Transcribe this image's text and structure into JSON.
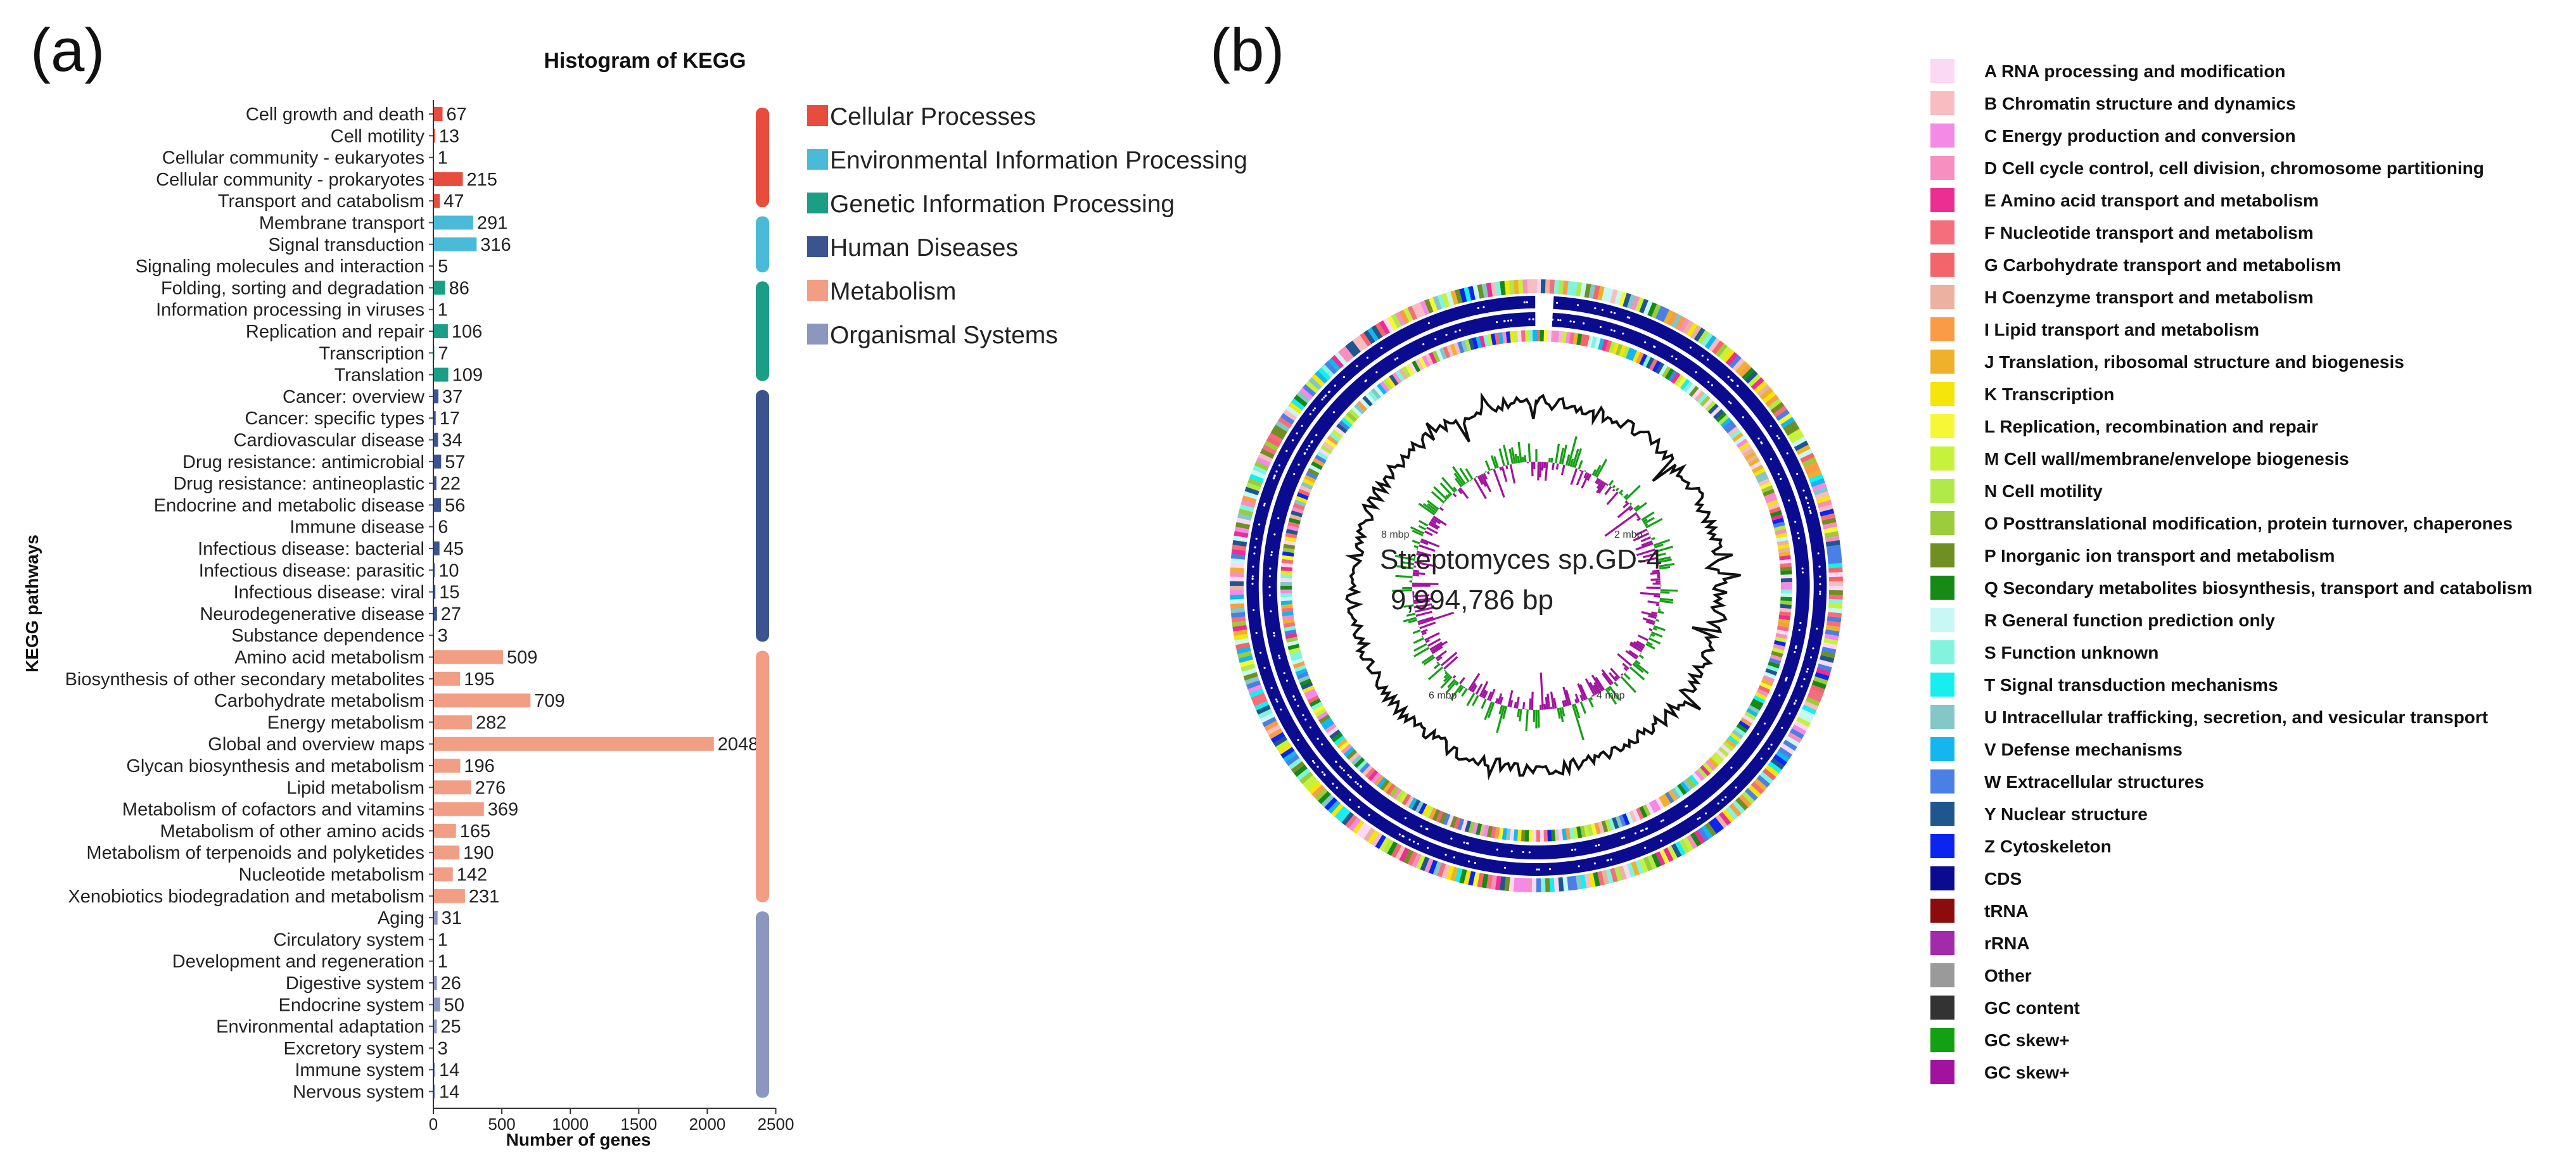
{
  "panels": {
    "a": "(a)",
    "b": "(b)"
  },
  "chart_data": [
    {
      "type": "bar",
      "orientation": "horizontal",
      "title": "Histogram of KEGG",
      "xlabel": "Number of genes",
      "ylabel": "KEGG pathways",
      "xlim": [
        0,
        2500
      ],
      "xticks": [
        0,
        500,
        1000,
        1500,
        2000,
        2500
      ],
      "groups": [
        {
          "name": "Cellular Processes",
          "color": "#e84c3d",
          "items": [
            {
              "label": "Cell growth and death",
              "value": 67
            },
            {
              "label": "Cell motility",
              "value": 13
            },
            {
              "label": "Cellular community - eukaryotes",
              "value": 1
            },
            {
              "label": "Cellular community - prokaryotes",
              "value": 215
            },
            {
              "label": "Transport and catabolism",
              "value": 47
            }
          ]
        },
        {
          "name": "Environmental Information Processing",
          "color": "#4bbad8",
          "items": [
            {
              "label": "Membrane transport",
              "value": 291
            },
            {
              "label": "Signal transduction",
              "value": 316
            },
            {
              "label": "Signaling molecules and interaction",
              "value": 5
            }
          ]
        },
        {
          "name": "Genetic Information Processing",
          "color": "#1a9e86",
          "items": [
            {
              "label": "Folding, sorting and degradation",
              "value": 86
            },
            {
              "label": "Information processing in viruses",
              "value": 1
            },
            {
              "label": "Replication and repair",
              "value": 106
            },
            {
              "label": "Transcription",
              "value": 7
            },
            {
              "label": "Translation",
              "value": 109
            }
          ]
        },
        {
          "name": "Human Diseases",
          "color": "#3b5490",
          "items": [
            {
              "label": "Cancer: overview",
              "value": 37
            },
            {
              "label": "Cancer: specific types",
              "value": 17
            },
            {
              "label": "Cardiovascular disease",
              "value": 34
            },
            {
              "label": "Drug resistance: antimicrobial",
              "value": 57
            },
            {
              "label": "Drug resistance: antineoplastic",
              "value": 22
            },
            {
              "label": "Endocrine and metabolic disease",
              "value": 56
            },
            {
              "label": "Immune disease",
              "value": 6
            },
            {
              "label": "Infectious disease: bacterial",
              "value": 45
            },
            {
              "label": "Infectious disease: parasitic",
              "value": 10
            },
            {
              "label": "Infectious disease: viral",
              "value": 15
            },
            {
              "label": "Neurodegenerative disease",
              "value": 27
            },
            {
              "label": "Substance dependence",
              "value": 3
            }
          ]
        },
        {
          "name": "Metabolism",
          "color": "#f29e85",
          "items": [
            {
              "label": "Amino acid metabolism",
              "value": 509
            },
            {
              "label": "Biosynthesis of other secondary metabolites",
              "value": 195
            },
            {
              "label": "Carbohydrate metabolism",
              "value": 709
            },
            {
              "label": "Energy metabolism",
              "value": 282
            },
            {
              "label": "Global and overview maps",
              "value": 2048
            },
            {
              "label": "Glycan biosynthesis and metabolism",
              "value": 196
            },
            {
              "label": "Lipid metabolism",
              "value": 276
            },
            {
              "label": "Metabolism of cofactors and vitamins",
              "value": 369
            },
            {
              "label": "Metabolism of other amino acids",
              "value": 165
            },
            {
              "label": "Metabolism of terpenoids and polyketides",
              "value": 190
            },
            {
              "label": "Nucleotide metabolism",
              "value": 142
            },
            {
              "label": "Xenobiotics biodegradation and metabolism",
              "value": 231
            }
          ]
        },
        {
          "name": "Organismal Systems",
          "color": "#8b97bf",
          "items": [
            {
              "label": "Aging",
              "value": 31
            },
            {
              "label": "Circulatory system",
              "value": 1
            },
            {
              "label": "Development and regeneration",
              "value": 1
            },
            {
              "label": "Digestive system",
              "value": 26
            },
            {
              "label": "Endocrine system",
              "value": 50
            },
            {
              "label": "Environmental adaptation",
              "value": 25
            },
            {
              "label": "Excretory system",
              "value": 3
            },
            {
              "label": "Immune system",
              "value": 14
            },
            {
              "label": "Nervous system",
              "value": 14
            }
          ]
        }
      ]
    },
    {
      "type": "circular_genome_map",
      "organism": "Streptomyces sp.GD-4",
      "genome_size": "9,994,786 bp",
      "markers": [
        "2 mbp",
        "4 mbp",
        "6 mbp",
        "8 mbp"
      ],
      "legend": [
        {
          "label": "A RNA processing and modification",
          "color": "#fbd9f5"
        },
        {
          "label": "B Chromatin structure and dynamics",
          "color": "#f9bcc1"
        },
        {
          "label": "C Energy production and conversion",
          "color": "#f58ae6"
        },
        {
          "label": "D Cell cycle control, cell division, chromosome partitioning",
          "color": "#f78fc0"
        },
        {
          "label": "E Amino acid transport and metabolism",
          "color": "#ec2e93"
        },
        {
          "label": "F Nucleotide transport and metabolism",
          "color": "#f56e7c"
        },
        {
          "label": "G Carbohydrate transport and metabolism",
          "color": "#f3656a"
        },
        {
          "label": "H Coenzyme transport and metabolism",
          "color": "#ecb1a0"
        },
        {
          "label": "I Lipid transport and metabolism",
          "color": "#f99c45"
        },
        {
          "label": "J Translation, ribosomal structure and biogenesis",
          "color": "#f0b12a"
        },
        {
          "label": "K Transcription",
          "color": "#f5e50a"
        },
        {
          "label": "L Replication, recombination and repair",
          "color": "#f7f738"
        },
        {
          "label": "M Cell wall/membrane/envelope biogenesis",
          "color": "#c7f23c"
        },
        {
          "label": "N Cell motility",
          "color": "#b1ea48"
        },
        {
          "label": "O Posttranslational modification, protein turnover, chaperones",
          "color": "#9ccb3b"
        },
        {
          "label": "P Inorganic ion transport and metabolism",
          "color": "#6f8f22"
        },
        {
          "label": "Q Secondary metabolites biosynthesis, transport and catabolism",
          "color": "#158a15"
        },
        {
          "label": "R General function prediction only",
          "color": "#c8f8f6"
        },
        {
          "label": "S Function unknown",
          "color": "#82f4de"
        },
        {
          "label": "T Signal transduction mechanisms",
          "color": "#16eef0"
        },
        {
          "label": "U Intracellular trafficking, secretion, and vesicular transport",
          "color": "#83c7c9"
        },
        {
          "label": "V Defense mechanisms",
          "color": "#13b6ef"
        },
        {
          "label": "W Extracellular structures",
          "color": "#4a7fe6"
        },
        {
          "label": "Y Nuclear structure",
          "color": "#1f5690"
        },
        {
          "label": "Z Cytoskeleton",
          "color": "#0b25ee"
        },
        {
          "label": "CDS",
          "color": "#0b0b8f"
        },
        {
          "label": "tRNA",
          "color": "#8a0c0c"
        },
        {
          "label": "rRNA",
          "color": "#a32aab"
        },
        {
          "label": "Other",
          "color": "#9a9a9a"
        },
        {
          "label": "GC content",
          "color": "#333333"
        },
        {
          "label": "GC skew+",
          "color": "#13a013"
        },
        {
          "label": "GC skew+",
          "color": "#a3129e"
        }
      ]
    }
  ]
}
